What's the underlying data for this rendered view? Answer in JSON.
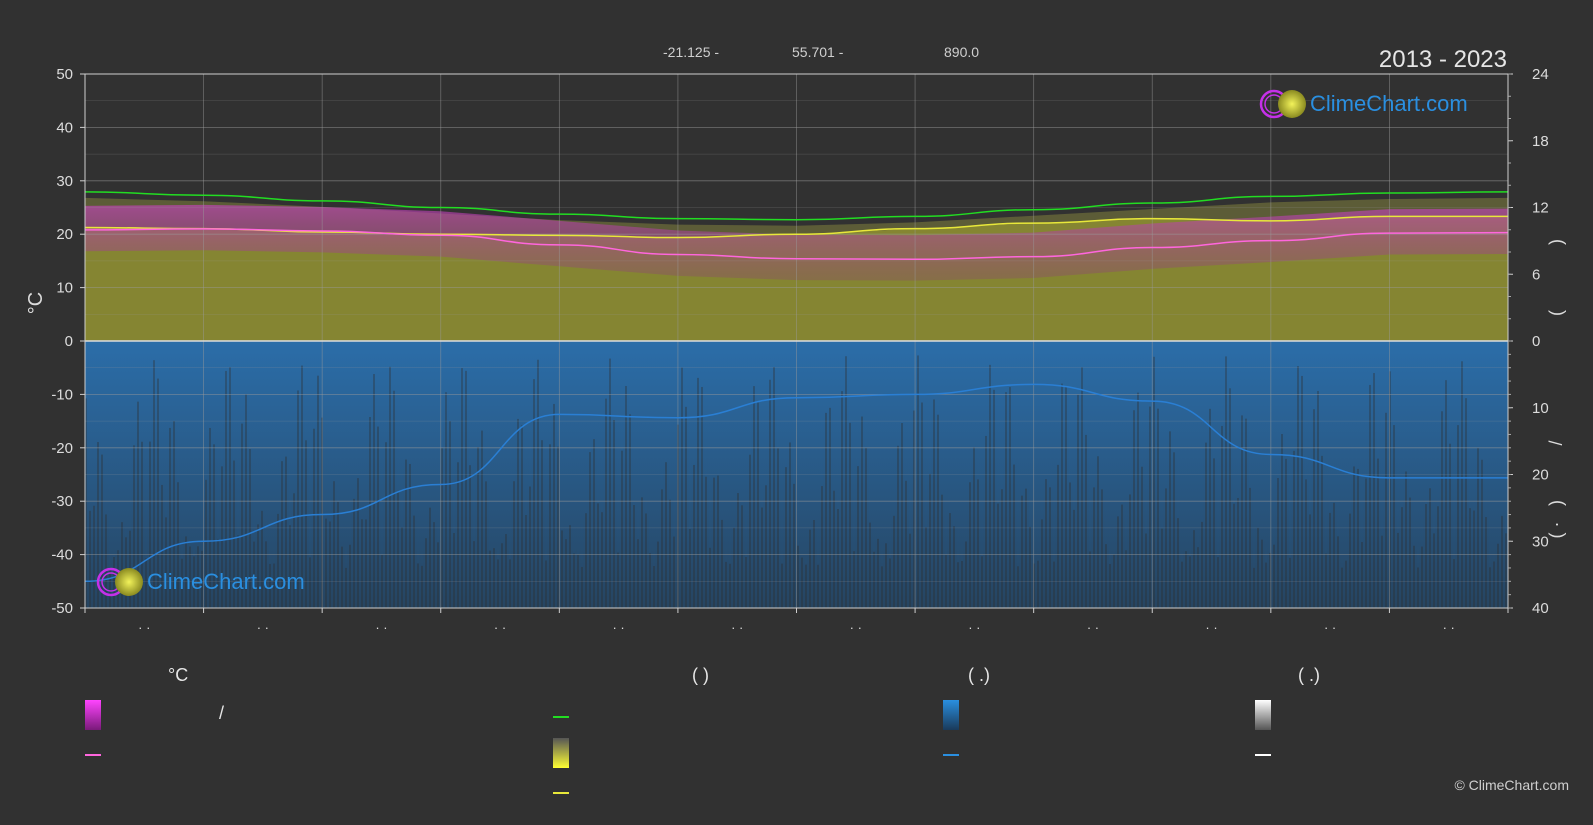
{
  "header": {
    "lat": "-21.125 -",
    "lon": "55.701 -",
    "elev": "890.0",
    "years": "2013 - 2023"
  },
  "logo": {
    "text": "ClimeChart.com"
  },
  "copyright": "© ClimeChart.com",
  "legend": {
    "col1_title": "°C",
    "col1_slash": "/",
    "col2_title": "(          )",
    "col3_title": "(   .)",
    "col4_title": "(   .)"
  },
  "colors": {
    "background": "#313131",
    "daylight": "#22dd22",
    "sunshine": "#e8e83a",
    "avg_temp": "#ff66dd",
    "temp_band": "#d63ad0",
    "precip": "#2a7fd4",
    "sun_fill": "#8f8f33"
  },
  "chart_data": {
    "type": "area",
    "x_tick_labels": [
      "· ·",
      "· ·",
      "· ·",
      "· ·",
      "· ·",
      "· ·",
      "· ·",
      "· ·",
      "· ·",
      "· ·",
      "· ·",
      "· ·"
    ],
    "left_axis": {
      "label": "°C",
      "ylim": [
        -50,
        50
      ],
      "ticks": [
        50,
        40,
        30,
        20,
        10,
        0,
        -10,
        -20,
        -30,
        -40,
        -50
      ]
    },
    "right_axis_top": {
      "ylim": [
        0,
        24
      ],
      "ticks": [
        24,
        18,
        12,
        6,
        0
      ]
    },
    "right_axis_bottom": {
      "ylim": [
        0,
        40
      ],
      "ticks": [
        0,
        10,
        20,
        30,
        40
      ],
      "inverted": true
    },
    "right_axis_labels": [
      ")",
      "(",
      "/",
      ")",
      "(   ·"
    ],
    "series": [
      {
        "name": "",
        "role": "daylight_hours",
        "axis": "right_top",
        "values": [
          13.4,
          13.1,
          12.6,
          12.0,
          11.4,
          11.0,
          10.9,
          11.2,
          11.8,
          12.4,
          13.0,
          13.3,
          13.4
        ]
      },
      {
        "name": "",
        "role": "sunshine_hours",
        "axis": "right_top",
        "values": [
          10.2,
          10.1,
          9.8,
          9.6,
          9.5,
          9.3,
          9.6,
          10.1,
          10.6,
          11.0,
          10.8,
          11.2,
          11.2
        ]
      },
      {
        "name": "",
        "role": "avg_temperature",
        "axis": "left",
        "values": [
          20.8,
          21.0,
          20.6,
          19.8,
          18.0,
          16.2,
          15.4,
          15.3,
          15.8,
          17.5,
          18.8,
          20.2,
          20.3
        ]
      },
      {
        "name": "",
        "role": "precipitation_mm",
        "axis": "right_bottom",
        "values": [
          36.0,
          30.0,
          26.0,
          21.5,
          11.0,
          11.5,
          8.5,
          8.0,
          6.5,
          9.0,
          17.0,
          20.5,
          20.5
        ]
      }
    ],
    "grid": true
  }
}
